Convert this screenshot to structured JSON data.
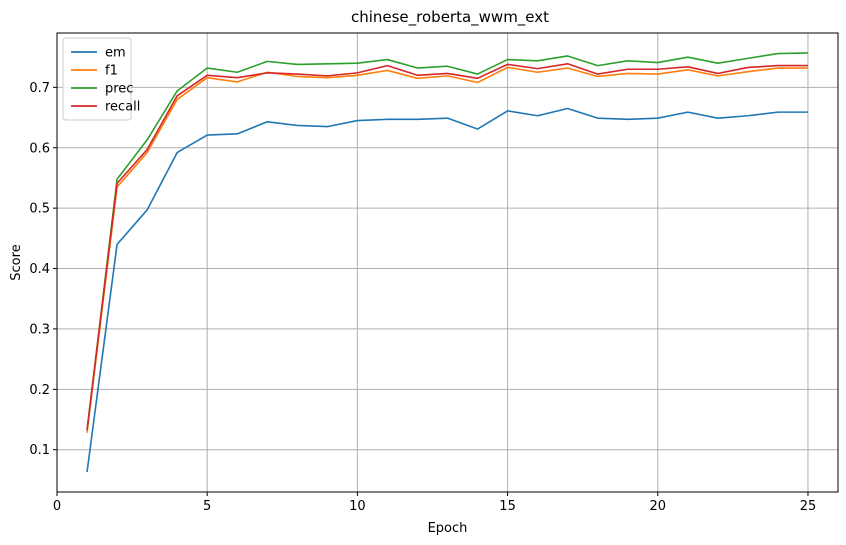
{
  "chart_data": {
    "type": "line",
    "title": "chinese_roberta_wwm_ext",
    "xlabel": "Epoch",
    "ylabel": "Score",
    "xlim": [
      0,
      26
    ],
    "ylim": [
      0.03,
      0.79
    ],
    "xticks": [
      0,
      5,
      10,
      15,
      20,
      25
    ],
    "yticks": [
      0.1,
      0.2,
      0.3,
      0.4,
      0.5,
      0.6,
      0.7
    ],
    "grid": true,
    "legend_position": "top-left",
    "x": [
      1,
      2,
      3,
      4,
      5,
      6,
      7,
      8,
      9,
      10,
      11,
      12,
      13,
      14,
      15,
      16,
      17,
      18,
      19,
      20,
      21,
      22,
      23,
      24,
      25
    ],
    "series": [
      {
        "name": "em",
        "color": "#1f77b4",
        "values": [
          0.063,
          0.44,
          0.497,
          0.592,
          0.621,
          0.623,
          0.643,
          0.637,
          0.635,
          0.645,
          0.647,
          0.647,
          0.649,
          0.631,
          0.661,
          0.653,
          0.665,
          0.649,
          0.647,
          0.649,
          0.659,
          0.649,
          0.653,
          0.659,
          0.659
        ]
      },
      {
        "name": "f1",
        "color": "#ff7f0e",
        "values": [
          0.128,
          0.535,
          0.592,
          0.68,
          0.716,
          0.709,
          0.725,
          0.718,
          0.716,
          0.72,
          0.728,
          0.715,
          0.719,
          0.708,
          0.733,
          0.725,
          0.732,
          0.718,
          0.723,
          0.722,
          0.729,
          0.719,
          0.726,
          0.732,
          0.732
        ]
      },
      {
        "name": "prec",
        "color": "#2ca02c",
        "values": [
          0.132,
          0.548,
          0.613,
          0.694,
          0.732,
          0.725,
          0.743,
          0.738,
          0.739,
          0.74,
          0.746,
          0.732,
          0.735,
          0.722,
          0.746,
          0.744,
          0.752,
          0.736,
          0.744,
          0.741,
          0.75,
          0.74,
          0.748,
          0.756,
          0.757
        ]
      },
      {
        "name": "recall",
        "color": "#d62728",
        "values": [
          0.133,
          0.541,
          0.597,
          0.686,
          0.72,
          0.716,
          0.724,
          0.722,
          0.719,
          0.724,
          0.736,
          0.72,
          0.723,
          0.715,
          0.738,
          0.731,
          0.739,
          0.722,
          0.73,
          0.73,
          0.734,
          0.723,
          0.733,
          0.736,
          0.736
        ]
      }
    ]
  }
}
